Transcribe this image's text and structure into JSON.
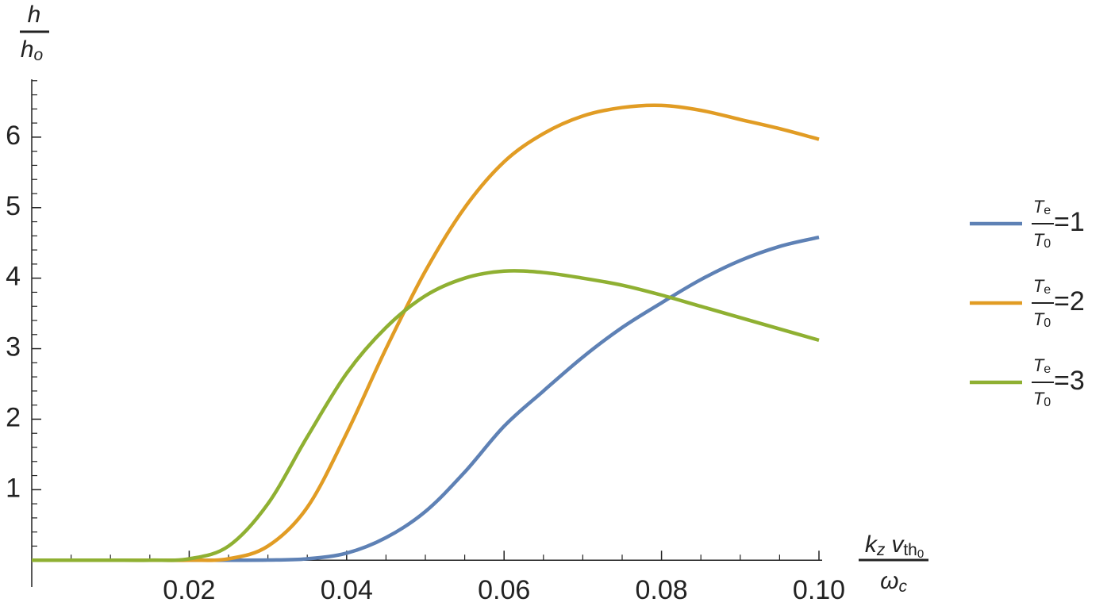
{
  "chart_data": {
    "type": "line",
    "ylabel": {
      "num": "h",
      "den": "h",
      "den_sub": "o"
    },
    "xlabel": {
      "num": "k",
      "num_sub": "z",
      "num2": "v",
      "num2_sub": "th",
      "num2_subsub": "0",
      "den": "ω",
      "den_sub": "c"
    },
    "legend_fraction": {
      "num": "T",
      "num_sub": "e",
      "den": "T",
      "den_sub": "0"
    },
    "legend": "right",
    "x": [
      0,
      0.005,
      0.01,
      0.015,
      0.02,
      0.025,
      0.03,
      0.035,
      0.04,
      0.045,
      0.05,
      0.055,
      0.06,
      0.065,
      0.07,
      0.075,
      0.08,
      0.085,
      0.09,
      0.095,
      0.1
    ],
    "series": [
      {
        "name": "=1",
        "color": "#5e81b5",
        "values": [
          0,
          0,
          0,
          0,
          0,
          0,
          0.002,
          0.02,
          0.1,
          0.32,
          0.69,
          1.25,
          1.9,
          2.4,
          2.88,
          3.3,
          3.65,
          3.98,
          4.25,
          4.45,
          4.58
        ]
      },
      {
        "name": "=2",
        "color": "#e19c24",
        "values": [
          0,
          0,
          0,
          0,
          0,
          0.02,
          0.2,
          0.75,
          1.8,
          3.0,
          4.1,
          5.0,
          5.65,
          6.05,
          6.3,
          6.42,
          6.45,
          6.38,
          6.25,
          6.12,
          5.97
        ]
      },
      {
        "name": "=3",
        "color": "#8fb032",
        "values": [
          0,
          0,
          0,
          0,
          0.02,
          0.2,
          0.8,
          1.75,
          2.65,
          3.3,
          3.75,
          4.0,
          4.1,
          4.08,
          4.0,
          3.9,
          3.76,
          3.6,
          3.44,
          3.28,
          3.12
        ]
      }
    ],
    "xlim": [
      0,
      0.1
    ],
    "ylim": [
      -0.38,
      6.82
    ],
    "xticks": [
      0.02,
      0.04,
      0.06,
      0.08,
      {
        "value": 0.1,
        "label": "0.10"
      }
    ],
    "yticks": [
      1,
      2,
      3,
      4,
      5,
      6
    ],
    "xminorticks": [
      0.005,
      0.01,
      0.015,
      0.025,
      0.03,
      0.035,
      0.045,
      0.05,
      0.055,
      0.065,
      0.07,
      0.075,
      0.085,
      0.09,
      0.095
    ],
    "yminorticks": [
      0.2,
      0.4,
      0.6,
      0.8,
      1.2,
      1.4,
      1.6,
      1.8,
      2.2,
      2.4,
      2.6,
      2.8,
      3.2,
      3.4,
      3.6,
      3.8,
      4.2,
      4.4,
      4.6,
      4.8,
      5.2,
      5.4,
      5.6,
      5.8,
      6.2,
      6.4,
      6.6,
      6.8
    ]
  }
}
